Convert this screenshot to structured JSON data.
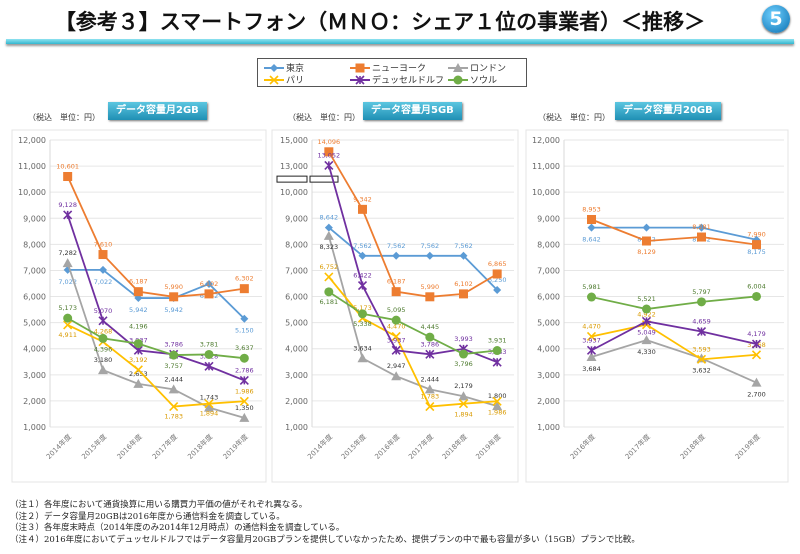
{
  "header": {
    "title": "【参考３】スマートフォン（ＭＮＯ：シェア１位の事業者）＜推移＞",
    "page_badge": "5"
  },
  "legend": [
    {
      "name": "東京",
      "color": "#5b9bd5",
      "marker": "diamond"
    },
    {
      "name": "ニューヨーク",
      "color": "#ed7d31",
      "marker": "square"
    },
    {
      "name": "ロンドン",
      "color": "#a5a5a5",
      "marker": "triangle"
    },
    {
      "name": "パリ",
      "color": "#ffc000",
      "marker": "x"
    },
    {
      "name": "デュッセルドルフ",
      "color": "#7030a0",
      "marker": "asterisk"
    },
    {
      "name": "ソウル",
      "color": "#70ad47",
      "marker": "circle"
    }
  ],
  "unit_label": "（税込　単位：円）",
  "chart_data": [
    {
      "type": "line",
      "title": "データ容量月2GB",
      "categories": [
        "2014年度",
        "2015年度",
        "2016年度",
        "2017年度",
        "2018年度",
        "2019年度"
      ],
      "ylim": [
        1000,
        12000
      ],
      "yticks": [
        1000,
        2000,
        3000,
        4000,
        5000,
        6000,
        7000,
        8000,
        9000,
        10000,
        11000,
        12000
      ],
      "grid": true,
      "series": [
        {
          "name": "東京",
          "values": [
            7022,
            7022,
            5942,
            5942,
            6482,
            5150
          ]
        },
        {
          "name": "ニューヨーク",
          "values": [
            10601,
            7610,
            6187,
            5990,
            6102,
            6302
          ]
        },
        {
          "name": "ロンドン",
          "values": [
            7282,
            3180,
            2653,
            2444,
            1743,
            1350
          ]
        },
        {
          "name": "パリ",
          "values": [
            4911,
            4268,
            3192,
            1783,
            1894,
            1986
          ]
        },
        {
          "name": "デュッセルドルフ",
          "values": [
            9128,
            5070,
            3937,
            3786,
            3328,
            2786
          ]
        },
        {
          "name": "ソウル",
          "values": [
            5173,
            4396,
            4196,
            3757,
            3781,
            3637
          ]
        }
      ]
    },
    {
      "type": "line",
      "title": "データ容量月5GB",
      "categories": [
        "2014年度",
        "2015年度",
        "2016年度",
        "2017年度",
        "2018年度",
        "2019年度"
      ],
      "ylim": [
        1000,
        15000
      ],
      "axis_break": [
        10000,
        13000
      ],
      "yticks": [
        1000,
        2000,
        3000,
        4000,
        5000,
        6000,
        7000,
        8000,
        9000,
        10000,
        13000,
        15000
      ],
      "grid": true,
      "series": [
        {
          "name": "東京",
          "values": [
            8642,
            7562,
            7562,
            7562,
            7562,
            6250
          ]
        },
        {
          "name": "ニューヨーク",
          "values": [
            14096,
            9342,
            6187,
            5990,
            6102,
            6865
          ]
        },
        {
          "name": "ロンドン",
          "values": [
            8323,
            3634,
            2947,
            2444,
            2179,
            1800
          ]
        },
        {
          "name": "パリ",
          "values": [
            6752,
            5173,
            4470,
            1783,
            1894,
            1986
          ]
        },
        {
          "name": "デュッセルドルフ",
          "values": [
            13052,
            6422,
            3937,
            3786,
            3993,
            3483
          ]
        },
        {
          "name": "ソウル",
          "values": [
            6181,
            5338,
            5095,
            4445,
            3796,
            3931
          ]
        }
      ]
    },
    {
      "type": "line",
      "title": "データ容量月20GB",
      "categories": [
        "2016年度",
        "2017年度",
        "2018年度",
        "2019年度"
      ],
      "ylim": [
        1000,
        12000
      ],
      "yticks": [
        1000,
        2000,
        3000,
        4000,
        5000,
        6000,
        7000,
        8000,
        9000,
        10000,
        11000,
        12000
      ],
      "grid": true,
      "series": [
        {
          "name": "東京",
          "values": [
            8642,
            8642,
            8642,
            8175
          ]
        },
        {
          "name": "ニューヨーク",
          "values": [
            8953,
            8129,
            8281,
            7990
          ]
        },
        {
          "name": "ロンドン",
          "values": [
            3684,
            4330,
            3632,
            2700
          ]
        },
        {
          "name": "パリ",
          "values": [
            4470,
            4922,
            3593,
            3768
          ]
        },
        {
          "name": "デュッセルドルフ",
          "values": [
            3937,
            5049,
            4659,
            4179
          ]
        },
        {
          "name": "ソウル",
          "values": [
            5981,
            5521,
            5797,
            6004
          ]
        }
      ]
    }
  ],
  "notes": [
    "（注１）各年度において通貨換算に用いる購買力平価の値がそれぞれ異なる。",
    "（注２）データ容量月20GBは2016年度から通信料金を調査している。",
    "（注３）各年度末時点（2014年度のみ2014年12月時点）の通信料金を調査している。",
    "（注４）2016年度においてデュッセルドルフではデータ容量月20GBプランを提供していなかったため、提供プランの中で最も容量が多い（15GB）プランで比較。"
  ]
}
